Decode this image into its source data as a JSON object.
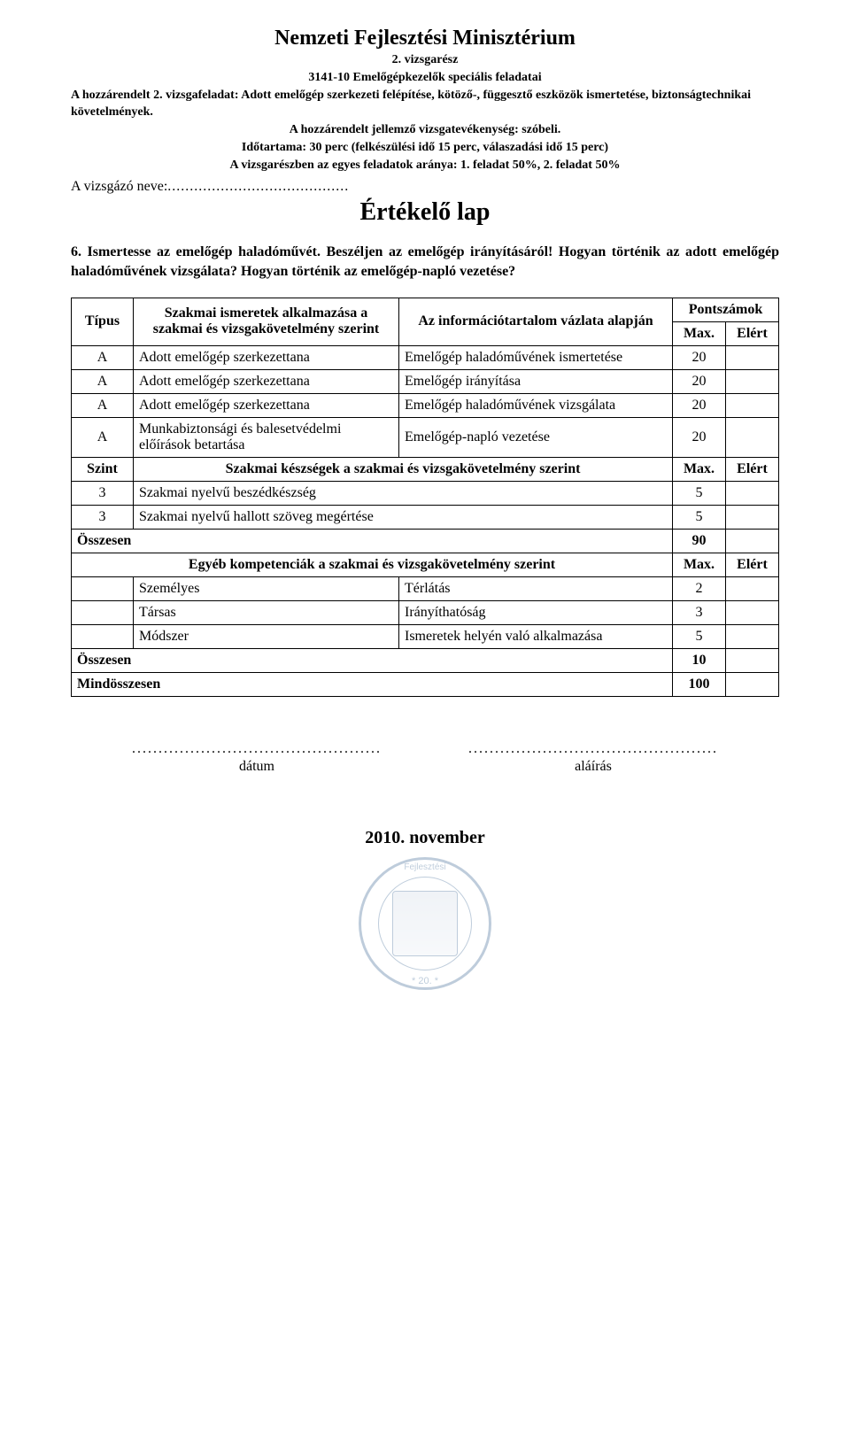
{
  "header": {
    "ministry": "Nemzeti Fejlesztési Minisztérium",
    "part": "2. vizsgarész",
    "subject": "3141-10 Emelőgépkezelők speciális feladatai",
    "task_prefix": "A hozzárendelt 2. vizsgafeladat: ",
    "task_body": "Adott emelőgép szerkezeti felépítése, kötöző-, függesztő eszközök ismertetése, biztonságtechnikai követelmények.",
    "activity": "A hozzárendelt jellemző vizsgatevékenység: szóbeli.",
    "duration": "Időtartama: 30 perc (felkészülési idő 15 perc, válaszadási idő 15 perc)",
    "ratio": "A vizsgarészben az egyes feladatok aránya: 1. feladat 50%, 2. feladat 50%"
  },
  "examinee_label": "A vizsgázó neve:",
  "sheet_title": "Értékelő lap",
  "question": "6. Ismertesse az emelőgép haladóművét. Beszéljen az emelőgép irányításáról! Hogyan történik az adott emelőgép haladóművének vizsgálata? Hogyan történik az emelőgép-napló vezetése?",
  "table": {
    "head": {
      "type": "Típus",
      "desc": "Szakmai ismeretek alkalmazása a szakmai és vizsgakövetelmény szerint",
      "info": "Az információtartalom vázlata alapján",
      "points": "Pontszámok",
      "max": "Max.",
      "elert": "Elért"
    },
    "rows_prof": [
      {
        "type": "A",
        "desc": "Adott emelőgép szerkezettana",
        "info": "Emelőgép haladóművének ismertetése",
        "max": "20"
      },
      {
        "type": "A",
        "desc": "Adott emelőgép szerkezettana",
        "info": "Emelőgép irányítása",
        "max": "20"
      },
      {
        "type": "A",
        "desc": "Adott emelőgép szerkezettana",
        "info": "Emelőgép haladóművének vizsgálata",
        "max": "20"
      },
      {
        "type": "A",
        "desc": "Munkabiztonsági és balesetvédelmi előírások betartása",
        "info": "Emelőgép-napló vezetése",
        "max": "20"
      }
    ],
    "skills_header": {
      "szint": "Szint",
      "title": "Szakmai készségek a szakmai és vizsgakövetelmény szerint",
      "max": "Max.",
      "elert": "Elért"
    },
    "rows_skills": [
      {
        "level": "3",
        "desc": "Szakmai nyelvű beszédkészség",
        "max": "5"
      },
      {
        "level": "3",
        "desc": "Szakmai nyelvű hallott szöveg megértése",
        "max": "5"
      }
    ],
    "osszesen1": {
      "label": "Összesen",
      "max": "90"
    },
    "other_header": {
      "title": "Egyéb kompetenciák a szakmai és vizsgakövetelmény szerint",
      "max": "Max.",
      "elert": "Elért"
    },
    "rows_other": [
      {
        "cat": "Személyes",
        "desc": "Térlátás",
        "max": "2"
      },
      {
        "cat": "Társas",
        "desc": "Irányíthatóság",
        "max": "3"
      },
      {
        "cat": "Módszer",
        "desc": "Ismeretek helyén való alkalmazása",
        "max": "5"
      }
    ],
    "osszesen2": {
      "label": "Összesen",
      "max": "10"
    },
    "mindosszesen": {
      "label": "Mindösszesen",
      "max": "100"
    }
  },
  "signatures": {
    "date_label": "dátum",
    "sign_label": "aláírás"
  },
  "footer_date": "2010. november",
  "seal": {
    "top": "Fejlesztési",
    "bottom": "* 20. *"
  },
  "colors": {
    "text": "#000000",
    "background": "#ffffff",
    "border": "#000000",
    "seal": "#2b5a8a"
  }
}
